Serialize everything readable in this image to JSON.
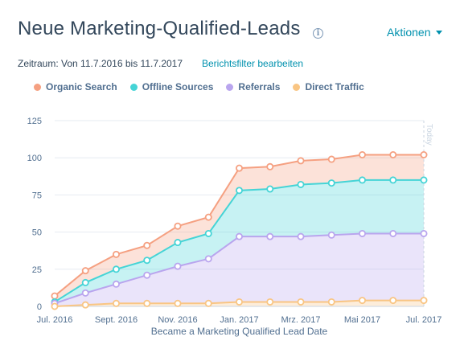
{
  "header": {
    "title": "Neue Marketing-Qualified-Leads",
    "info_icon": "info-icon",
    "actions_label": "Aktionen"
  },
  "period": {
    "text": "Zeitraum: Von 11.7.2016 bis 11.7.2017",
    "filter_link": "Berichtsfilter bearbeiten"
  },
  "colors": {
    "organic": "#f5a081",
    "offline": "#45d4d6",
    "referrals": "#b9a5ee",
    "direct": "#f9c583",
    "axis_text": "#516f90",
    "grid": "#e6ebf1"
  },
  "chart_data": {
    "type": "area",
    "stacked": true,
    "xlabel": "Became a Marketing Qualified Lead Date",
    "ylabel": "",
    "ylim": [
      0,
      125
    ],
    "yticks": [
      0,
      25,
      50,
      75,
      100,
      125
    ],
    "x_tick_labels": [
      "Jul. 2016",
      "Sept. 2016",
      "Nov. 2016",
      "Jan. 2017",
      "Mrz. 2017",
      "Mai 2017",
      "Jul. 2017"
    ],
    "marker_annotation": "Today",
    "legend_position": "top",
    "series": [
      {
        "name": "Organic Search",
        "color": "#f5a081",
        "cumulative": [
          7,
          24,
          35,
          41,
          54,
          60,
          93,
          94,
          98,
          99,
          102,
          102,
          102
        ]
      },
      {
        "name": "Offline Sources",
        "color": "#45d4d6",
        "cumulative": [
          3,
          16,
          25,
          31,
          43,
          49,
          78,
          79,
          82,
          83,
          85,
          85,
          85
        ]
      },
      {
        "name": "Referrals",
        "color": "#b9a5ee",
        "cumulative": [
          2,
          9,
          15,
          21,
          27,
          32,
          47,
          47,
          47,
          48,
          49,
          49,
          49
        ]
      },
      {
        "name": "Direct Traffic",
        "color": "#f9c583",
        "cumulative": [
          0,
          1,
          2,
          2,
          2,
          2,
          3,
          3,
          3,
          3,
          4,
          4,
          4
        ]
      }
    ]
  }
}
